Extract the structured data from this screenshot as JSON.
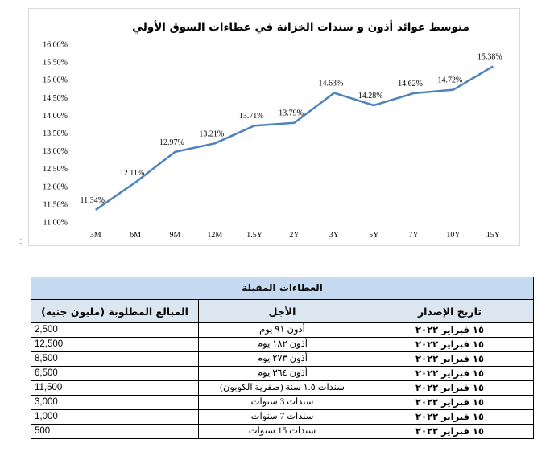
{
  "chart_data": {
    "type": "line",
    "title": "متوسط عوائد أذون و سندات الخزانة في عطاءات السوق الأولي",
    "categories": [
      "3M",
      "6M",
      "9M",
      "12M",
      "1.5Y",
      "2Y",
      "3Y",
      "5Y",
      "7Y",
      "10Y",
      "15Y"
    ],
    "series": [
      {
        "values": [
          11.34,
          12.11,
          12.97,
          13.21,
          13.71,
          13.79,
          14.63,
          14.28,
          14.62,
          14.72,
          15.38
        ],
        "labels": [
          "11.34%",
          "12.11%",
          "12.97%",
          "13.21%",
          "13.71%",
          "13.79%",
          "14.63%",
          "14.28%",
          "14.62%",
          "14.72%",
          "15.38%"
        ]
      }
    ],
    "yticks": [
      "16.00%",
      "15.50%",
      "15.00%",
      "14.50%",
      "14.00%",
      "13.50%",
      "13.00%",
      "12.50%",
      "12.00%",
      "11.50%",
      "11.00%"
    ],
    "ylim": [
      11.0,
      16.0
    ],
    "grid": false,
    "legend": "none",
    "line_color": "#4f81bd"
  },
  "stray_mark": ":",
  "table": {
    "title": "العطاءات المقبلة",
    "headers": {
      "date": "تاريخ الإصدار",
      "tenor": "الأجل",
      "amount": "المبالغ المطلوبة (مليون جنيه)"
    },
    "rows": [
      {
        "date": "١٥ فبراير ٢٠٢٢",
        "tenor": "أذون ٩١ يوم",
        "amount": "2,500"
      },
      {
        "date": "١٥ فبراير ٢٠٢٢",
        "tenor": "أذون ١٨٢ يوم",
        "amount": "12,500"
      },
      {
        "date": "١٥ فبراير ٢٠٢٢",
        "tenor": "أذون ٢٧٣ يوم",
        "amount": "8,500"
      },
      {
        "date": "١٥ فبراير ٢٠٢٢",
        "tenor": "أذون ٣٦٤ يوم",
        "amount": "6,500"
      },
      {
        "date": "١٥ فبراير ٢٠٢٢",
        "tenor": "سندات ١.٥ سنة (صفرية الكوبون)",
        "amount": "11,500"
      },
      {
        "date": "١٥ فبراير ٢٠٢٢",
        "tenor": "سندات 3 سنوات",
        "amount": "3,000"
      },
      {
        "date": "١٥ فبراير ٢٠٢٢",
        "tenor": "سندات 7 سنوات",
        "amount": "1,000"
      },
      {
        "date": "١٥ فبراير ٢٠٢٢",
        "tenor": "سندات 15 سنوات",
        "amount": "500"
      }
    ]
  }
}
